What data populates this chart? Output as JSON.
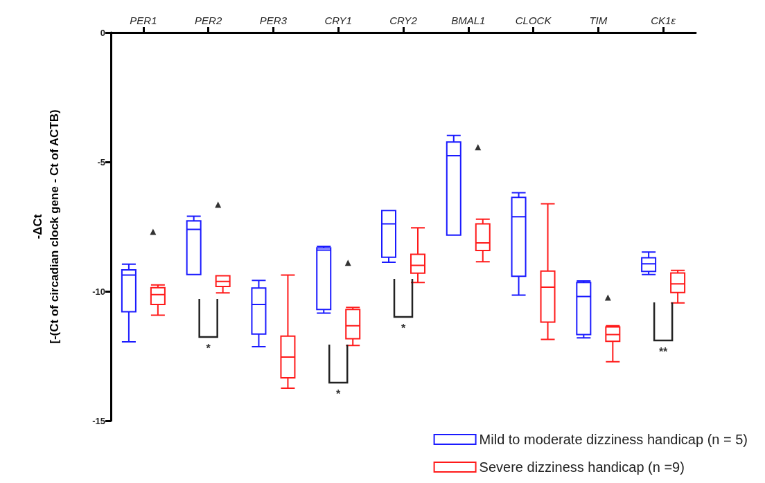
{
  "chart_data": {
    "type": "box",
    "ylabel": "-ΔCt\n[-(Ct of circadian clock gene - Ct of ACTB)",
    "categories": [
      "PER1",
      "PER2",
      "PER3",
      "CRY1",
      "CRY2",
      "BMAL1",
      "CLOCK",
      "TIM",
      "CK1ε"
    ],
    "ylim": [
      -15,
      0
    ],
    "yticks": [
      0,
      -5,
      -10,
      -15
    ],
    "grid": false,
    "legend": "bottom right",
    "series": [
      {
        "name": "Mild to moderate dizziness handicap (n = 5)",
        "color": "#1a1aff",
        "boxes": [
          {
            "low": -11.95,
            "q1": -10.79,
            "median": -9.37,
            "q3": -9.17,
            "high": -8.95
          },
          {
            "low": -9.35,
            "q1": -9.35,
            "median": -7.61,
            "q3": -7.28,
            "high": -7.1
          },
          {
            "low": -12.14,
            "q1": -11.65,
            "median": -10.51,
            "q3": -9.87,
            "high": -9.58
          },
          {
            "low": -10.84,
            "q1": -10.7,
            "median": -8.41,
            "q3": -8.32,
            "high": -8.26
          },
          {
            "low": -8.88,
            "q1": -8.68,
            "median": -7.39,
            "q3": -6.88,
            "high": -6.88
          },
          {
            "low": -7.83,
            "q1": -7.83,
            "median": -4.76,
            "q3": -4.23,
            "high": -3.98
          },
          {
            "low": -10.15,
            "q1": -9.42,
            "median": -7.12,
            "q3": -6.37,
            "high": -6.19
          },
          {
            "low": -11.8,
            "q1": -11.67,
            "median": -10.2,
            "q3": -9.66,
            "high": -9.6
          },
          {
            "low": -9.35,
            "q1": -9.23,
            "median": -8.94,
            "q3": -8.7,
            "high": -8.48
          }
        ]
      },
      {
        "name": "Severe dizziness handicap (n =9)",
        "color": "#ff1a1a",
        "boxes": [
          {
            "low": -10.92,
            "q1": -10.51,
            "median": -10.13,
            "q3": -9.86,
            "high": -9.75
          },
          {
            "low": -10.06,
            "q1": -9.81,
            "median": -9.62,
            "q3": -9.4,
            "high": -9.4
          },
          {
            "low": -13.74,
            "q1": -13.34,
            "median": -12.54,
            "q3": -11.73,
            "high": -9.37
          },
          {
            "low": -12.09,
            "q1": -11.83,
            "median": -11.33,
            "q3": -10.7,
            "high": -10.62
          },
          {
            "low": -9.66,
            "q1": -9.3,
            "median": -9.0,
            "q3": -8.57,
            "high": -7.55
          },
          {
            "low": -8.86,
            "q1": -8.42,
            "median": -8.13,
            "q3": -7.39,
            "high": -7.21
          },
          {
            "low": -11.86,
            "q1": -11.19,
            "median": -9.84,
            "q3": -9.22,
            "high": -6.62
          },
          {
            "low": -12.72,
            "q1": -11.93,
            "median": -11.67,
            "q3": -11.38,
            "high": -11.33
          },
          {
            "low": -10.45,
            "q1": -10.05,
            "median": -9.71,
            "q3": -9.29,
            "high": -9.19
          }
        ]
      },
      {
        "type": "scatter",
        "color": "#000000",
        "marker": "triangle",
        "x": [
          "PER1",
          "PER2",
          "CRY1",
          "BMAL1",
          "TIM"
        ],
        "values": [
          -7.7,
          -6.65,
          -8.9,
          -4.43,
          -10.24
        ]
      }
    ],
    "annotations": [
      "*",
      "*",
      "*",
      "**"
    ]
  }
}
